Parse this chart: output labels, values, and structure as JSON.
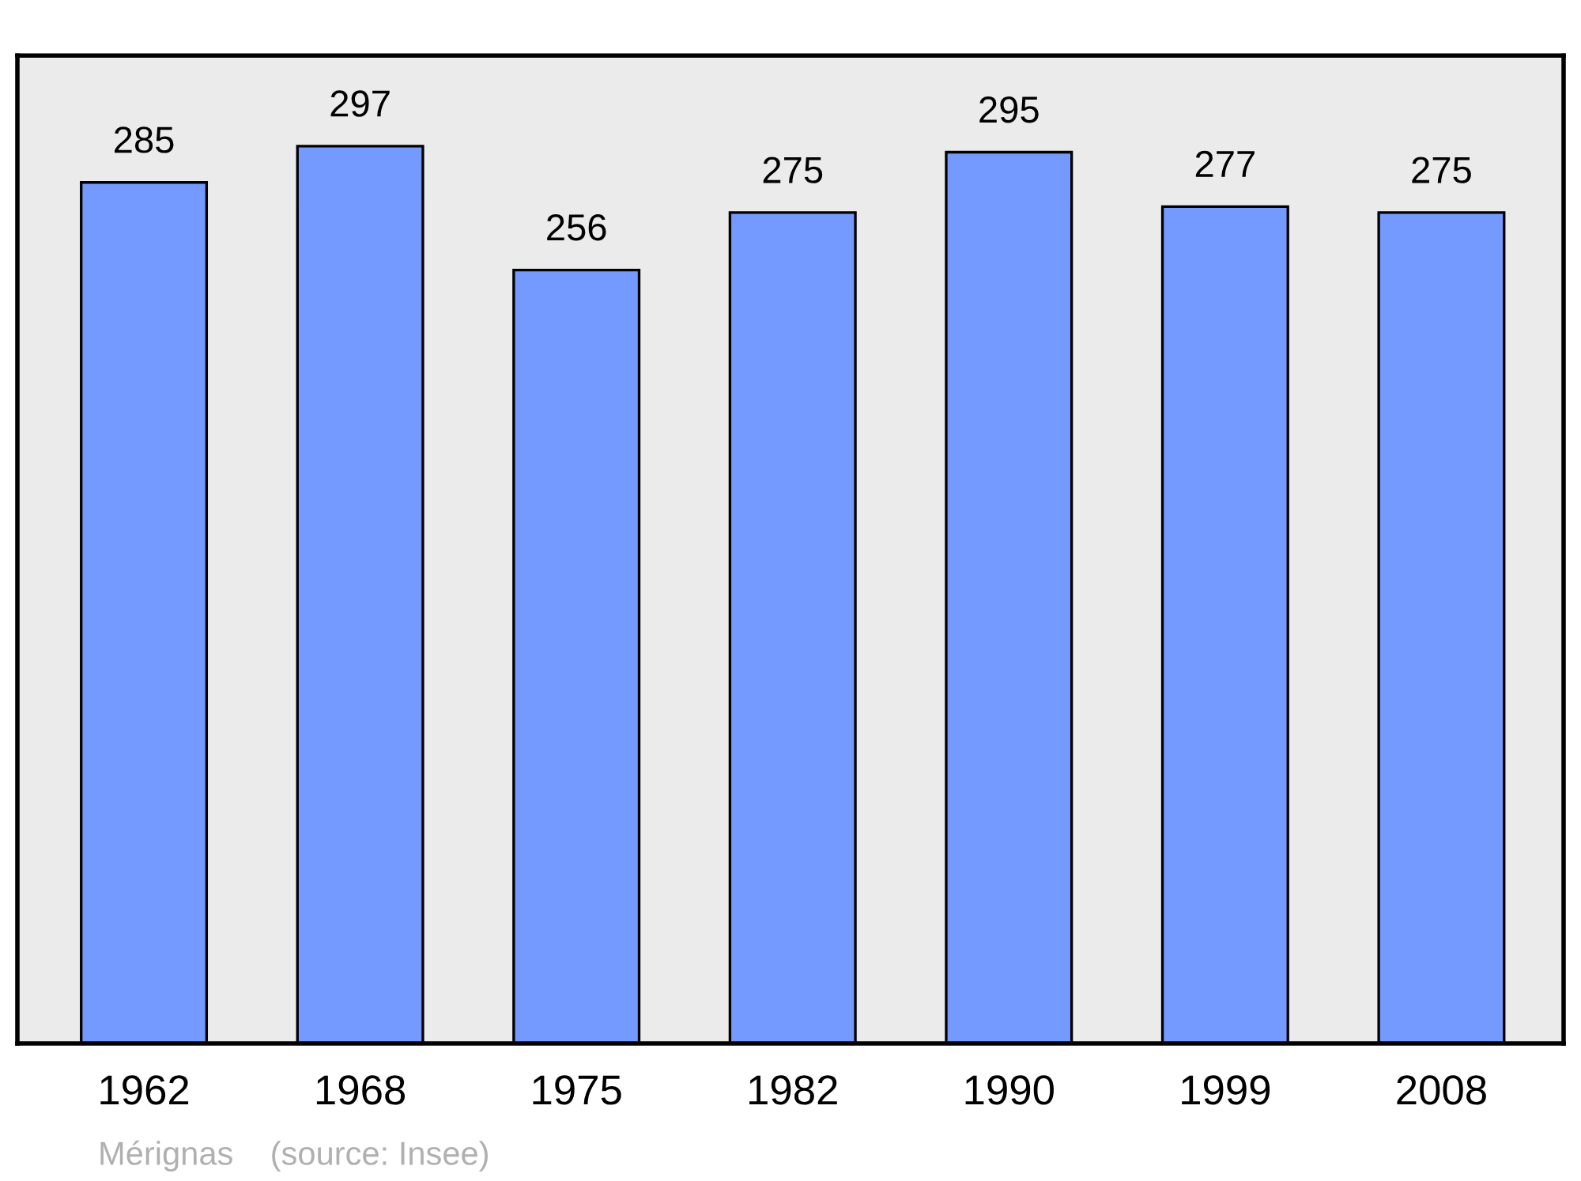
{
  "chart_data": {
    "type": "bar",
    "categories": [
      "1962",
      "1968",
      "1975",
      "1982",
      "1990",
      "1999",
      "2008"
    ],
    "values": [
      285,
      297,
      256,
      275,
      295,
      277,
      275
    ],
    "color": "#7499ff",
    "data_labels": true,
    "ylim": [
      0,
      327
    ],
    "grid": false,
    "legend": false,
    "tick_labels": "x",
    "annotations": [
      "Mérignas    (source: Insee)"
    ]
  }
}
